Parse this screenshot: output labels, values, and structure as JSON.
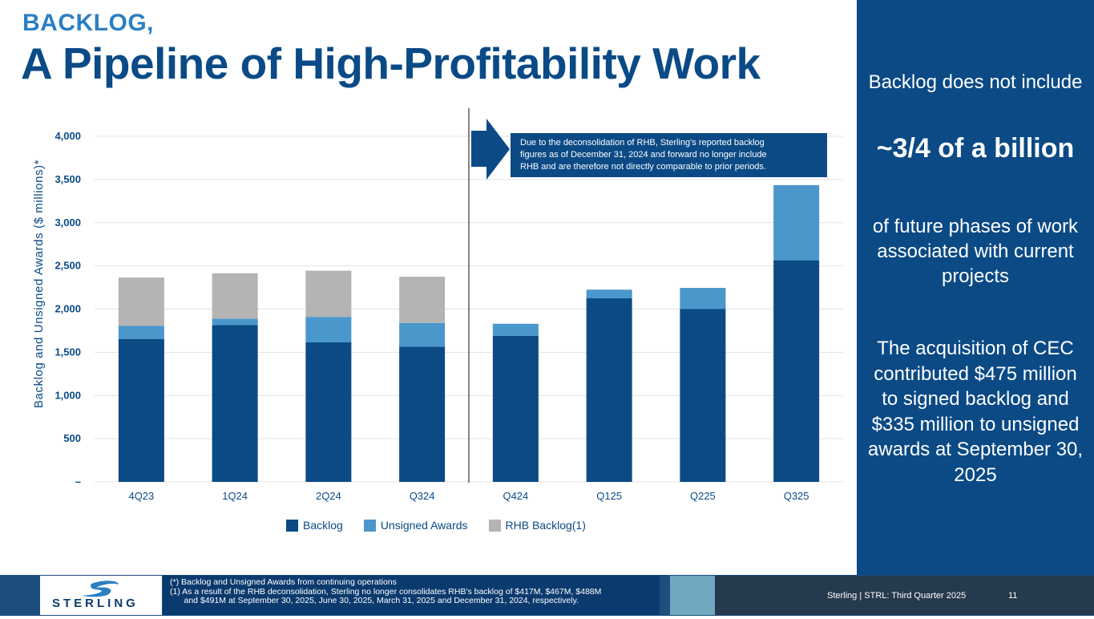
{
  "header": {
    "title_small": "BACKLOG,",
    "title_main": "A Pipeline of High-Profitability Work"
  },
  "side_panel": {
    "line1": "Backlog does not include",
    "highlight": "~3/4 of a billion",
    "line3": "of future phases of work associated with current projects",
    "line4": "The acquisition of CEC contributed $475 million to signed backlog and $335 million to unsigned awards  at September 30, 2025"
  },
  "callout": {
    "text_lines": [
      "Due to the deconsolidation of RHB, Sterling's reported  backlog",
      "figures as of December 31, 2024 and forward no longer include",
      "RHB and are therefore not directly comparable to prior periods."
    ]
  },
  "colors": {
    "backlog": "#0b4a85",
    "unsigned": "#4a97cc",
    "rhb": "#b4b4b4",
    "panel": "#0b4a85",
    "axis_text": "#0a4a86"
  },
  "chart_data": {
    "type": "bar",
    "stacked": true,
    "categories": [
      "4Q23",
      "1Q24",
      "2Q24",
      "Q324",
      "Q424",
      "Q125",
      "Q225",
      "Q325"
    ],
    "series": [
      {
        "name": "Backlog",
        "values": [
          1655,
          1815,
          1615,
          1565,
          1690,
          2125,
          2000,
          2565
        ]
      },
      {
        "name": "Unsigned Awards",
        "values": [
          150,
          75,
          295,
          275,
          140,
          100,
          245,
          870
        ]
      },
      {
        "name": "RHB Backlog(1)",
        "values": [
          560,
          525,
          535,
          535,
          0,
          0,
          0,
          0
        ]
      }
    ],
    "ylabel": "Backlog and Unsigned Awards ($ millions)*",
    "ylim": [
      0,
      4000
    ],
    "yticks": [
      0,
      500,
      1000,
      1500,
      2000,
      2500,
      3000,
      3500,
      4000
    ],
    "ytick_labels": [
      "–",
      "500",
      "1,000",
      "1,500",
      "2,000",
      "2,500",
      "3,000",
      "3,500",
      "4,000"
    ],
    "legend": [
      "Backlog",
      "Unsigned Awards",
      "RHB Backlog(1)"
    ],
    "legend_position": "bottom",
    "grid": true
  },
  "footer": {
    "logo_text": "STERLING",
    "notes": [
      "(*) Backlog and Unsigned Awards from continuing operations",
      "(1) As a result of the RHB deconsolidation, Sterling no longer consolidates RHB's backlog of $417M, $467M, $488M",
      "      and $491M at September 30, 2025, June 30, 2025, March 31, 2025 and December 31, 2024, respectively."
    ],
    "reference": "Sterling | STRL:  Third Quarter  2025",
    "page_number": "11"
  }
}
